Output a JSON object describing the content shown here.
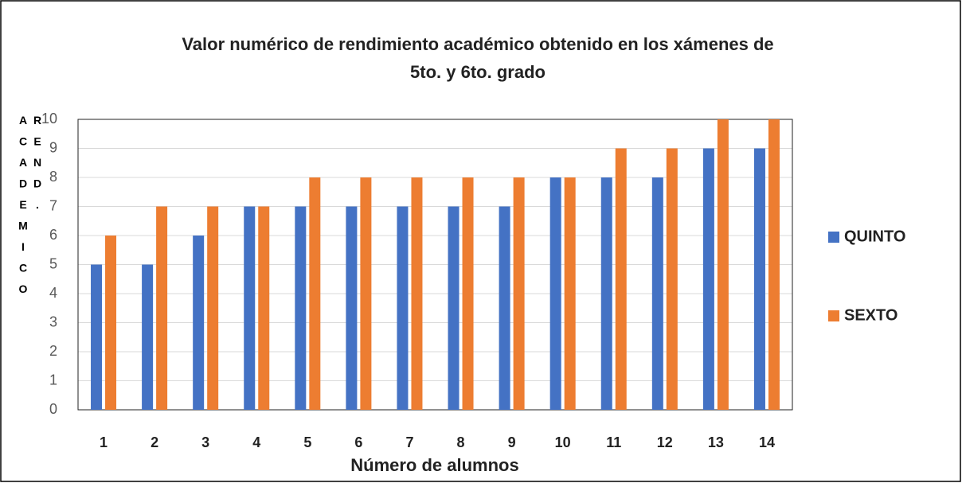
{
  "chart_data": {
    "type": "bar",
    "title": [
      "Valor numérico de rendimiento académico obtenido en los xámenes de",
      "5to. y 6to. grado"
    ],
    "x_label": "Número de alumnos",
    "y_label": "REND. ACADEMICO",
    "categories": [
      "1",
      "2",
      "3",
      "4",
      "5",
      "6",
      "7",
      "8",
      "9",
      "10",
      "11",
      "12",
      "13",
      "14"
    ],
    "series": [
      {
        "name": "QUINTO",
        "color": "#4472c4",
        "values": [
          5,
          5,
          6,
          7,
          7,
          7,
          7,
          7,
          7,
          8,
          8,
          8,
          9,
          9
        ]
      },
      {
        "name": "SEXTO",
        "color": "#ed7d31",
        "values": [
          6,
          7,
          7,
          7,
          8,
          8,
          8,
          8,
          8,
          8,
          9,
          9,
          10,
          10
        ]
      }
    ],
    "ylim": [
      0,
      10
    ],
    "yticks": [
      0,
      1,
      2,
      3,
      4,
      5,
      6,
      7,
      8,
      9,
      10
    ],
    "grid": true,
    "legend": "right"
  }
}
